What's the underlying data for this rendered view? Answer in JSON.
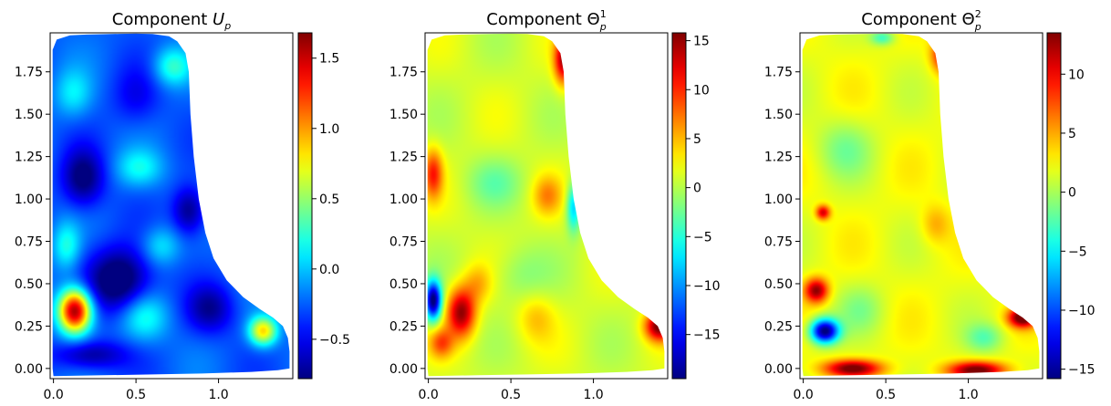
{
  "chart_data": [
    {
      "type": "heatmap",
      "title_prefix": "Component ",
      "title_symbol": "U",
      "title_sub": "p",
      "title_sup": "",
      "xlim": [
        -0.02,
        1.45
      ],
      "ylim": [
        -0.06,
        1.98
      ],
      "xticks": [
        {
          "v": 0.0,
          "label": "0.0"
        },
        {
          "v": 0.5,
          "label": "0.5"
        },
        {
          "v": 1.0,
          "label": "1.0"
        }
      ],
      "yticks": [
        {
          "v": 0.0,
          "label": "0.00"
        },
        {
          "v": 0.25,
          "label": "0.25"
        },
        {
          "v": 0.5,
          "label": "0.50"
        },
        {
          "v": 0.75,
          "label": "0.75"
        },
        {
          "v": 1.0,
          "label": "1.00"
        },
        {
          "v": 1.25,
          "label": "1.25"
        },
        {
          "v": 1.5,
          "label": "1.50"
        },
        {
          "v": 1.75,
          "label": "1.75"
        }
      ],
      "colorbar": {
        "min": -0.78,
        "max": 1.68,
        "ticks": [
          {
            "v": -0.5,
            "label": "−0.5"
          },
          {
            "v": 0.0,
            "label": "0.0"
          },
          {
            "v": 0.5,
            "label": "0.5"
          },
          {
            "v": 1.0,
            "label": "1.0"
          },
          {
            "v": 1.5,
            "label": "1.5"
          }
        ]
      },
      "colormap": "jet",
      "background": -0.25,
      "features": [
        {
          "x": 0.13,
          "y": 0.34,
          "amp": 1.9,
          "sx": 0.07,
          "sy": 0.09
        },
        {
          "x": 1.27,
          "y": 0.22,
          "amp": 1.1,
          "sx": 0.06,
          "sy": 0.06
        },
        {
          "x": 0.4,
          "y": 0.52,
          "amp": -0.75,
          "sx": 0.13,
          "sy": 0.13
        },
        {
          "x": 0.18,
          "y": 1.12,
          "amp": -0.6,
          "sx": 0.09,
          "sy": 0.12
        },
        {
          "x": 0.82,
          "y": 0.93,
          "amp": -0.55,
          "sx": 0.07,
          "sy": 0.1
        },
        {
          "x": 0.22,
          "y": 0.08,
          "amp": -0.5,
          "sx": 0.15,
          "sy": 0.06
        },
        {
          "x": 0.95,
          "y": 0.35,
          "amp": -0.45,
          "sx": 0.1,
          "sy": 0.1
        },
        {
          "x": 0.55,
          "y": 0.3,
          "amp": 0.45,
          "sx": 0.1,
          "sy": 0.1
        },
        {
          "x": 0.72,
          "y": 1.78,
          "amp": 0.5,
          "sx": 0.08,
          "sy": 0.08
        },
        {
          "x": 0.12,
          "y": 1.62,
          "amp": 0.35,
          "sx": 0.08,
          "sy": 0.1
        },
        {
          "x": 0.52,
          "y": 1.18,
          "amp": 0.4,
          "sx": 0.1,
          "sy": 0.08
        },
        {
          "x": 0.65,
          "y": 0.72,
          "amp": 0.35,
          "sx": 0.08,
          "sy": 0.08
        },
        {
          "x": 0.08,
          "y": 0.72,
          "amp": 0.45,
          "sx": 0.06,
          "sy": 0.1
        },
        {
          "x": 0.5,
          "y": 1.6,
          "amp": -0.25,
          "sx": 0.1,
          "sy": 0.12
        }
      ]
    },
    {
      "type": "heatmap",
      "title_prefix": "Component ",
      "title_symbol": "Θ",
      "title_sub": "p",
      "title_sup": "1",
      "xlim": [
        -0.02,
        1.45
      ],
      "ylim": [
        -0.06,
        1.98
      ],
      "xticks": [
        {
          "v": 0.0,
          "label": "0.0"
        },
        {
          "v": 0.5,
          "label": "0.5"
        },
        {
          "v": 1.0,
          "label": "1.0"
        }
      ],
      "yticks": [
        {
          "v": 0.0,
          "label": "0.00"
        },
        {
          "v": 0.25,
          "label": "0.25"
        },
        {
          "v": 0.5,
          "label": "0.50"
        },
        {
          "v": 0.75,
          "label": "0.75"
        },
        {
          "v": 1.0,
          "label": "1.00"
        },
        {
          "v": 1.25,
          "label": "1.25"
        },
        {
          "v": 1.5,
          "label": "1.50"
        },
        {
          "v": 1.75,
          "label": "1.75"
        }
      ],
      "colorbar": {
        "min": -19.5,
        "max": 15.8,
        "ticks": [
          {
            "v": -15,
            "label": "−15"
          },
          {
            "v": -10,
            "label": "−10"
          },
          {
            "v": -5,
            "label": "−5"
          },
          {
            "v": 0,
            "label": "0"
          },
          {
            "v": 5,
            "label": "5"
          },
          {
            "v": 10,
            "label": "10"
          },
          {
            "v": 15,
            "label": "15"
          }
        ]
      },
      "colormap": "jet",
      "background": 1.0,
      "features": [
        {
          "x": 0.2,
          "y": 0.33,
          "amp": 14,
          "sx": 0.06,
          "sy": 0.1
        },
        {
          "x": 0.03,
          "y": 0.4,
          "amp": -21,
          "sx": 0.035,
          "sy": 0.08
        },
        {
          "x": 0.08,
          "y": 0.15,
          "amp": 7,
          "sx": 0.05,
          "sy": 0.06
        },
        {
          "x": 0.03,
          "y": 1.15,
          "amp": 9,
          "sx": 0.04,
          "sy": 0.1
        },
        {
          "x": 0.82,
          "y": 1.82,
          "amp": 13,
          "sx": 0.04,
          "sy": 0.1
        },
        {
          "x": 1.4,
          "y": 0.25,
          "amp": 15,
          "sx": 0.06,
          "sy": 0.06
        },
        {
          "x": 0.88,
          "y": 0.95,
          "amp": -9,
          "sx": 0.03,
          "sy": 0.1
        },
        {
          "x": 0.72,
          "y": 1.02,
          "amp": 5,
          "sx": 0.06,
          "sy": 0.08
        },
        {
          "x": 0.4,
          "y": 1.1,
          "amp": -3,
          "sx": 0.12,
          "sy": 0.1
        },
        {
          "x": 0.55,
          "y": 0.55,
          "amp": -2.5,
          "sx": 0.12,
          "sy": 0.12
        },
        {
          "x": 0.65,
          "y": 0.3,
          "amp": 3.5,
          "sx": 0.08,
          "sy": 0.1
        },
        {
          "x": 0.3,
          "y": 0.5,
          "amp": 4,
          "sx": 0.06,
          "sy": 0.08
        }
      ]
    },
    {
      "type": "heatmap",
      "title_prefix": "Component ",
      "title_symbol": "Θ",
      "title_sub": "p",
      "title_sup": "2",
      "xlim": [
        -0.02,
        1.45
      ],
      "ylim": [
        -0.06,
        1.98
      ],
      "xticks": [
        {
          "v": 0.0,
          "label": "0.0"
        },
        {
          "v": 0.5,
          "label": "0.5"
        },
        {
          "v": 1.0,
          "label": "1.0"
        }
      ],
      "yticks": [
        {
          "v": 0.0,
          "label": "0.00"
        },
        {
          "v": 0.25,
          "label": "0.25"
        },
        {
          "v": 0.5,
          "label": "0.50"
        },
        {
          "v": 0.75,
          "label": "0.75"
        },
        {
          "v": 1.0,
          "label": "1.00"
        },
        {
          "v": 1.25,
          "label": "1.25"
        },
        {
          "v": 1.5,
          "label": "1.50"
        },
        {
          "v": 1.75,
          "label": "1.75"
        }
      ],
      "colorbar": {
        "min": -15.8,
        "max": 13.5,
        "ticks": [
          {
            "v": -15,
            "label": "−15"
          },
          {
            "v": -10,
            "label": "−10"
          },
          {
            "v": -5,
            "label": "−5"
          },
          {
            "v": 0,
            "label": "0"
          },
          {
            "v": 5,
            "label": "5"
          },
          {
            "v": 10,
            "label": "10"
          }
        ]
      },
      "colormap": "jet",
      "background": 2.0,
      "features": [
        {
          "x": 0.13,
          "y": 0.22,
          "amp": -18,
          "sx": 0.06,
          "sy": 0.05
        },
        {
          "x": 0.08,
          "y": 0.46,
          "amp": 11,
          "sx": 0.05,
          "sy": 0.05
        },
        {
          "x": 0.3,
          "y": 0.0,
          "amp": 12,
          "sx": 0.12,
          "sy": 0.035
        },
        {
          "x": 1.05,
          "y": -0.01,
          "amp": 12,
          "sx": 0.12,
          "sy": 0.035
        },
        {
          "x": 1.33,
          "y": 0.3,
          "amp": 13,
          "sx": 0.06,
          "sy": 0.04
        },
        {
          "x": 0.85,
          "y": 1.85,
          "amp": 9,
          "sx": 0.05,
          "sy": 0.07
        },
        {
          "x": 0.48,
          "y": 1.95,
          "amp": -5,
          "sx": 0.05,
          "sy": 0.03
        },
        {
          "x": 0.12,
          "y": 0.92,
          "amp": 9,
          "sx": 0.03,
          "sy": 0.03
        },
        {
          "x": 0.25,
          "y": 1.3,
          "amp": -3,
          "sx": 0.12,
          "sy": 0.12
        },
        {
          "x": 1.1,
          "y": 0.18,
          "amp": -4,
          "sx": 0.08,
          "sy": 0.06
        },
        {
          "x": 0.35,
          "y": 0.35,
          "amp": -2.5,
          "sx": 0.1,
          "sy": 0.1
        },
        {
          "x": 0.8,
          "y": 0.85,
          "amp": 3,
          "sx": 0.06,
          "sy": 0.08
        }
      ]
    }
  ]
}
